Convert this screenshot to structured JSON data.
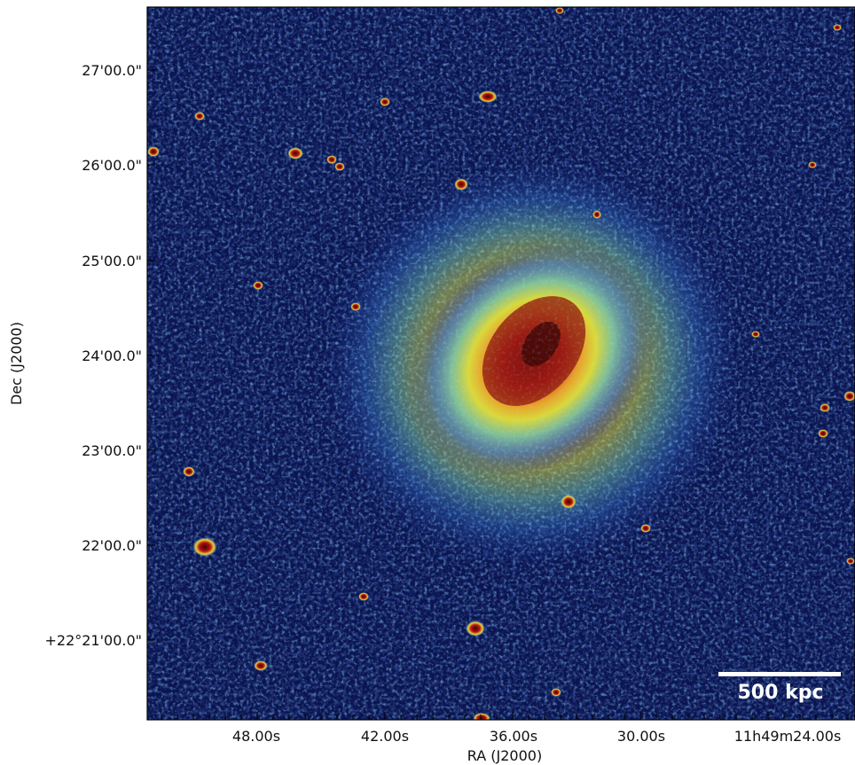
{
  "image": {
    "kind": "x-ray surface brightness map of a galaxy cluster",
    "colormap": "jet",
    "background_color": "#0b1450"
  },
  "axes": {
    "xlabel": "RA (J2000)",
    "ylabel": "Dec (J2000)",
    "xticks": [
      "48.00s",
      "42.00s",
      "36.00s",
      "30.00s",
      "11h49m24.00s"
    ],
    "yticks": [
      "27'00.0\"",
      "26'00.0\"",
      "25'00.0\"",
      "24'00.0\"",
      "23'00.0\"",
      "22'00.0\"",
      "+22°21'00.0\""
    ]
  },
  "scalebar": {
    "label": "500 kpc",
    "color": "#ffffff"
  }
}
